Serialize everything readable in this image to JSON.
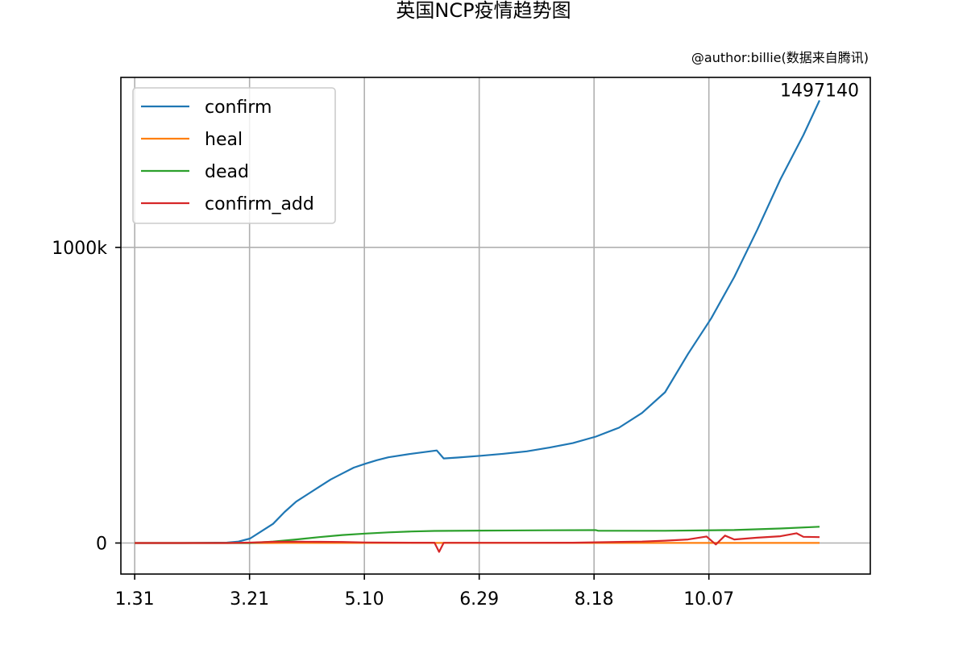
{
  "chart_data": {
    "type": "line",
    "title": "英国NCP疫情趋势图",
    "subtitle": "@author:billie(数据来自腾讯)",
    "xlabel": "",
    "ylabel": "",
    "x_ticks": [
      "1.31",
      "3.21",
      "5.10",
      "6.29",
      "8.18",
      "10.07"
    ],
    "y_ticks": [
      {
        "value": 0,
        "label": "0"
      },
      {
        "value": 1000000,
        "label": "1000k"
      }
    ],
    "ylim": [
      -105000,
      1575000
    ],
    "xlim_days": [
      -6,
      319
    ],
    "last_value_label": "1497140",
    "grid": true,
    "legend_position": "upper-left",
    "colors": {
      "confirm": "#1f77b4",
      "heal": "#ff7f0e",
      "dead": "#2ca02c",
      "confirm_add": "#d62728"
    },
    "series": [
      {
        "name": "confirm",
        "points": [
          [
            0,
            2
          ],
          [
            20,
            23
          ],
          [
            40,
            1400
          ],
          [
            45,
            5000
          ],
          [
            50,
            15000
          ],
          [
            55,
            40000
          ],
          [
            60,
            65000
          ],
          [
            65,
            105000
          ],
          [
            70,
            140000
          ],
          [
            75,
            165000
          ],
          [
            80,
            190000
          ],
          [
            85,
            215000
          ],
          [
            90,
            235000
          ],
          [
            95,
            255000
          ],
          [
            100,
            268000
          ],
          [
            105,
            280000
          ],
          [
            110,
            290000
          ],
          [
            120,
            302000
          ],
          [
            131,
            313000
          ],
          [
            134,
            286000
          ],
          [
            140,
            289000
          ],
          [
            150,
            295000
          ],
          [
            160,
            302000
          ],
          [
            170,
            310000
          ],
          [
            180,
            323000
          ],
          [
            190,
            338000
          ],
          [
            200,
            360000
          ],
          [
            210,
            390000
          ],
          [
            220,
            440000
          ],
          [
            230,
            510000
          ],
          [
            240,
            640000
          ],
          [
            250,
            760000
          ],
          [
            260,
            900000
          ],
          [
            270,
            1060000
          ],
          [
            280,
            1230000
          ],
          [
            290,
            1380000
          ],
          [
            297,
            1497140
          ]
        ]
      },
      {
        "name": "heal",
        "points": [
          [
            0,
            0
          ],
          [
            60,
            0
          ],
          [
            65,
            344
          ],
          [
            297,
            344
          ]
        ]
      },
      {
        "name": "dead",
        "points": [
          [
            0,
            0
          ],
          [
            50,
            0
          ],
          [
            60,
            5000
          ],
          [
            70,
            12000
          ],
          [
            80,
            20000
          ],
          [
            90,
            27000
          ],
          [
            100,
            32000
          ],
          [
            110,
            36000
          ],
          [
            120,
            39000
          ],
          [
            130,
            41000
          ],
          [
            150,
            42000
          ],
          [
            180,
            43000
          ],
          [
            200,
            43500
          ],
          [
            201,
            41500
          ],
          [
            230,
            41500
          ],
          [
            260,
            44000
          ],
          [
            280,
            49000
          ],
          [
            297,
            55000
          ]
        ]
      },
      {
        "name": "confirm_add",
        "points": [
          [
            0,
            0
          ],
          [
            40,
            0
          ],
          [
            50,
            1500
          ],
          [
            60,
            4000
          ],
          [
            70,
            4500
          ],
          [
            80,
            4000
          ],
          [
            90,
            3500
          ],
          [
            100,
            2000
          ],
          [
            120,
            1200
          ],
          [
            130,
            1000
          ],
          [
            132,
            -30000
          ],
          [
            134,
            800
          ],
          [
            150,
            800
          ],
          [
            170,
            900
          ],
          [
            190,
            1200
          ],
          [
            220,
            5000
          ],
          [
            230,
            8000
          ],
          [
            240,
            12000
          ],
          [
            248,
            22000
          ],
          [
            252,
            -5000
          ],
          [
            256,
            25000
          ],
          [
            260,
            12000
          ],
          [
            270,
            18000
          ],
          [
            280,
            23000
          ],
          [
            287,
            33000
          ],
          [
            290,
            21000
          ],
          [
            297,
            20000
          ]
        ]
      }
    ]
  }
}
